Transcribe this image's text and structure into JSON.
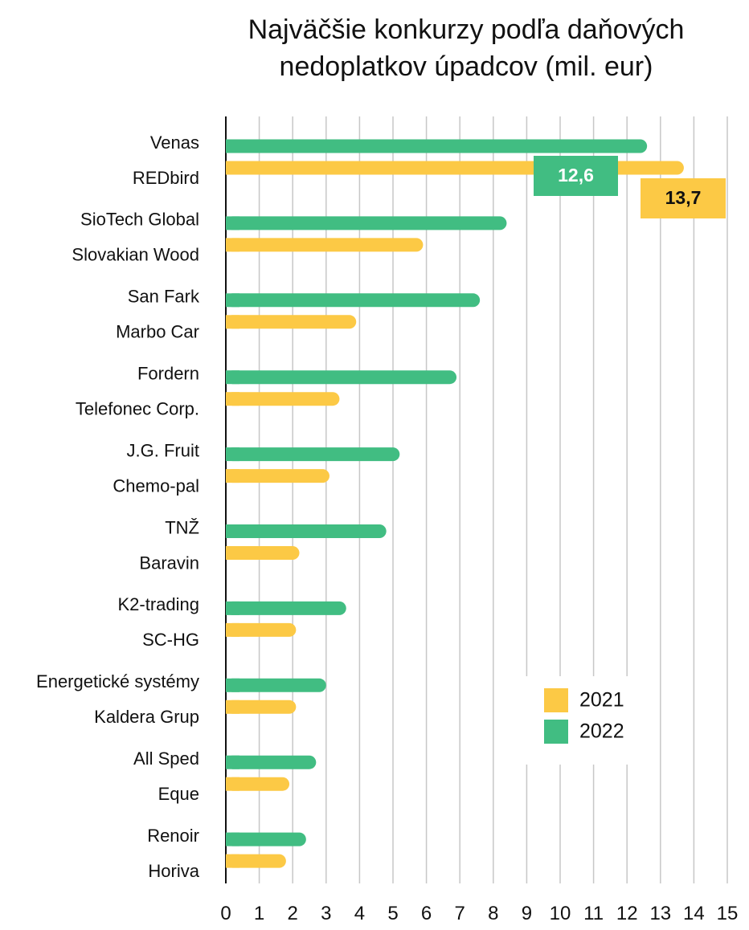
{
  "chart_data": {
    "type": "bar",
    "orientation": "horizontal",
    "title": "Najväčšie konkurzy podľa daňových nedoplatkov úpadcov (mil. eur)",
    "title_lines": [
      "Najväčšie konkurzy podľa daňových",
      "nedoplatkov úpadcov (mil. eur)"
    ],
    "xlim": [
      0,
      15
    ],
    "xticks": [
      0,
      1,
      2,
      3,
      4,
      5,
      6,
      7,
      8,
      9,
      10,
      11,
      12,
      13,
      14,
      15
    ],
    "grid": "vertical",
    "legend_position": "right",
    "series": [
      {
        "name": "2022",
        "color": "#41bd82",
        "categories": [
          "Venas",
          "SioTech Global",
          "San Fark",
          "Fordern",
          "J.G. Fruit",
          "TNŽ",
          "K2-trading",
          "Energetické systémy",
          "All Sped",
          "Renoir"
        ],
        "values": [
          12.6,
          8.4,
          7.6,
          6.9,
          5.2,
          4.8,
          3.6,
          3.0,
          2.7,
          2.4
        ]
      },
      {
        "name": "2021",
        "color": "#fcc945",
        "categories": [
          "REDbird",
          "Slovakian Wood",
          "Marbo Car",
          "Telefonec Corp.",
          "Chemo-pal",
          "Baravin",
          "SC-HG",
          "Kaldera Grup",
          "Eque",
          "Horiva"
        ],
        "values": [
          13.7,
          5.9,
          3.9,
          3.4,
          3.1,
          2.2,
          2.1,
          2.1,
          1.9,
          1.8
        ]
      }
    ],
    "legend": [
      {
        "name": "2021",
        "color": "#fcc945"
      },
      {
        "name": "2022",
        "color": "#41bd82"
      }
    ],
    "annotations": [
      {
        "text": "12,6",
        "series": "2022",
        "category": "Venas",
        "bg": "#41bd82",
        "fg": "#ffffff"
      },
      {
        "text": "13,7",
        "series": "2021",
        "category": "REDbird",
        "bg": "#fcc945",
        "fg": "#111111"
      }
    ]
  }
}
